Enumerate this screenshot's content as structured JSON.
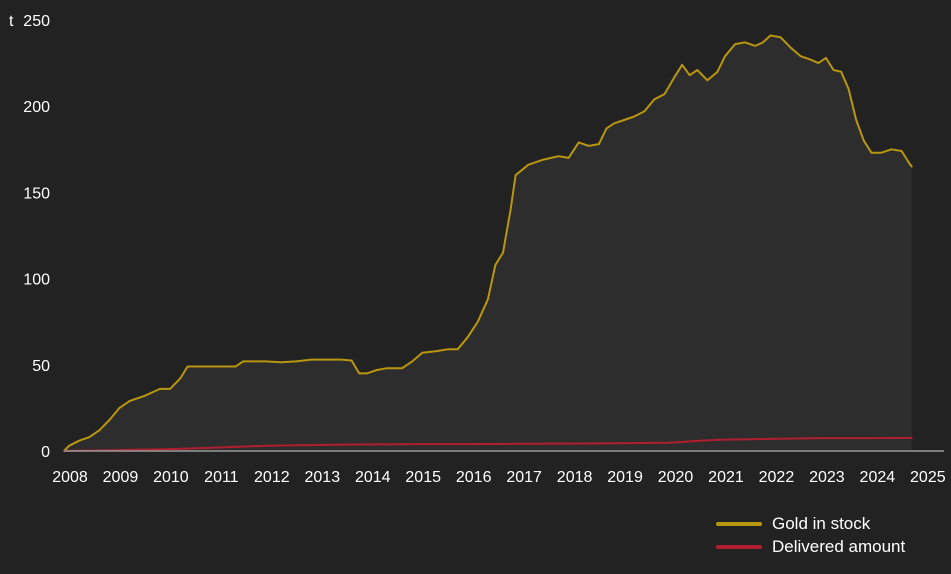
{
  "chart_data": {
    "type": "area",
    "y_unit": "t",
    "ylim": [
      0,
      250
    ],
    "y_ticks": [
      0,
      50,
      100,
      150,
      200,
      250
    ],
    "x_ticks": [
      "2008",
      "2009",
      "2010",
      "2011",
      "2012",
      "2013",
      "2014",
      "2015",
      "2016",
      "2017",
      "2018",
      "2019",
      "2020",
      "2021",
      "2022",
      "2023",
      "2024",
      "2025"
    ],
    "xlim": [
      2008.0,
      2025.4
    ],
    "grid": false,
    "legend_position": "bottom-right",
    "series": [
      {
        "name": "Gold in stock",
        "color": "#b8960f",
        "points": [
          [
            2008.0,
            0
          ],
          [
            2008.1,
            3
          ],
          [
            2008.3,
            6
          ],
          [
            2008.5,
            8
          ],
          [
            2008.7,
            12
          ],
          [
            2008.9,
            18
          ],
          [
            2009.1,
            25
          ],
          [
            2009.3,
            29
          ],
          [
            2009.6,
            32
          ],
          [
            2009.9,
            36
          ],
          [
            2010.1,
            36
          ],
          [
            2010.3,
            42
          ],
          [
            2010.45,
            49
          ],
          [
            2010.7,
            49
          ],
          [
            2011.0,
            49
          ],
          [
            2011.2,
            49
          ],
          [
            2011.4,
            49
          ],
          [
            2011.55,
            52
          ],
          [
            2011.8,
            52
          ],
          [
            2012.0,
            52
          ],
          [
            2012.3,
            51.5
          ],
          [
            2012.6,
            52
          ],
          [
            2012.9,
            53
          ],
          [
            2013.2,
            53
          ],
          [
            2013.5,
            53
          ],
          [
            2013.7,
            52.5
          ],
          [
            2013.85,
            45
          ],
          [
            2014.0,
            45
          ],
          [
            2014.2,
            47
          ],
          [
            2014.4,
            48
          ],
          [
            2014.7,
            48
          ],
          [
            2014.9,
            52
          ],
          [
            2015.1,
            57
          ],
          [
            2015.4,
            58
          ],
          [
            2015.6,
            59
          ],
          [
            2015.8,
            59
          ],
          [
            2016.0,
            66
          ],
          [
            2016.2,
            75
          ],
          [
            2016.4,
            88
          ],
          [
            2016.55,
            108
          ],
          [
            2016.7,
            115
          ],
          [
            2016.85,
            140
          ],
          [
            2016.95,
            160
          ],
          [
            2017.2,
            166
          ],
          [
            2017.5,
            169
          ],
          [
            2017.8,
            171
          ],
          [
            2018.0,
            170
          ],
          [
            2018.2,
            179
          ],
          [
            2018.4,
            177
          ],
          [
            2018.6,
            178
          ],
          [
            2018.75,
            187
          ],
          [
            2018.9,
            190
          ],
          [
            2019.1,
            192
          ],
          [
            2019.3,
            194
          ],
          [
            2019.5,
            197
          ],
          [
            2019.7,
            204
          ],
          [
            2019.9,
            207
          ],
          [
            2020.1,
            217
          ],
          [
            2020.25,
            224
          ],
          [
            2020.4,
            218
          ],
          [
            2020.55,
            221
          ],
          [
            2020.75,
            215
          ],
          [
            2020.95,
            220
          ],
          [
            2021.1,
            229
          ],
          [
            2021.3,
            236
          ],
          [
            2021.5,
            237
          ],
          [
            2021.7,
            235
          ],
          [
            2021.85,
            237
          ],
          [
            2022.0,
            241
          ],
          [
            2022.2,
            240
          ],
          [
            2022.4,
            234
          ],
          [
            2022.6,
            229
          ],
          [
            2022.8,
            227
          ],
          [
            2022.95,
            225
          ],
          [
            2023.1,
            228
          ],
          [
            2023.25,
            221
          ],
          [
            2023.4,
            220
          ],
          [
            2023.55,
            210
          ],
          [
            2023.7,
            192
          ],
          [
            2023.85,
            180
          ],
          [
            2024.0,
            173
          ],
          [
            2024.2,
            173
          ],
          [
            2024.4,
            175
          ],
          [
            2024.6,
            174
          ],
          [
            2024.75,
            167
          ],
          [
            2024.8,
            165
          ]
        ]
      },
      {
        "name": "Delivered amount",
        "color": "#b01e2f",
        "points": [
          [
            2008.0,
            0
          ],
          [
            2009.0,
            0.5
          ],
          [
            2010.0,
            1
          ],
          [
            2011.0,
            2
          ],
          [
            2012.0,
            3
          ],
          [
            2013.0,
            3.5
          ],
          [
            2014.0,
            3.8
          ],
          [
            2015.0,
            4
          ],
          [
            2016.0,
            4
          ],
          [
            2017.0,
            4.2
          ],
          [
            2018.0,
            4.3
          ],
          [
            2019.0,
            4.5
          ],
          [
            2020.0,
            4.8
          ],
          [
            2020.6,
            6
          ],
          [
            2021.0,
            6.5
          ],
          [
            2022.0,
            7
          ],
          [
            2023.0,
            7.5
          ],
          [
            2024.0,
            7.5
          ],
          [
            2024.8,
            7.6
          ]
        ]
      }
    ]
  },
  "legend": {
    "gold_label": "Gold in stock",
    "delivered_label": "Delivered amount"
  }
}
